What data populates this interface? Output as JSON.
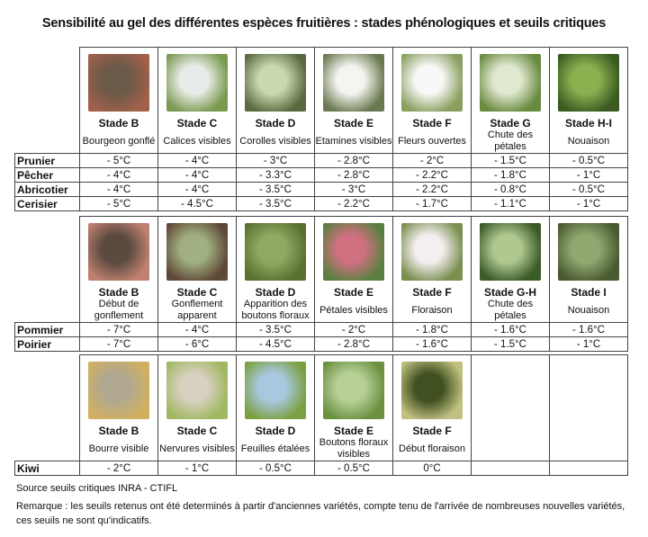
{
  "title": "Sensibilité au gel des différentes espèces fruitières : stades phénologiques et seuils critiques",
  "sections": [
    {
      "stages": [
        {
          "stage": "Stade B",
          "desc": "Bourgeon gonflé",
          "photo": "bud-photo",
          "colors": [
            "#6b5a48",
            "#a0604a"
          ]
        },
        {
          "stage": "Stade C",
          "desc": "Calices visibles",
          "photo": "calyx-photo",
          "colors": [
            "#e8ece8",
            "#7a9a50"
          ]
        },
        {
          "stage": "Stade D",
          "desc": "Corolles visibles",
          "photo": "corolla-photo",
          "colors": [
            "#c8d8b0",
            "#5a6a40"
          ]
        },
        {
          "stage": "Stade E",
          "desc": "Etamines visibles",
          "photo": "stamen-photo",
          "colors": [
            "#f4f4f0",
            "#6a7a50"
          ]
        },
        {
          "stage": "Stade F",
          "desc": "Fleurs ouvertes",
          "photo": "open-flower-photo",
          "colors": [
            "#f8f8f8",
            "#8aa060"
          ]
        },
        {
          "stage": "Stade G",
          "desc": "Chute des pétales",
          "photo": "petal-fall-photo",
          "colors": [
            "#e0e8d0",
            "#6a8a40"
          ]
        },
        {
          "stage": "Stade H-I",
          "desc": "Nouaison",
          "photo": "fruit-set-photo",
          "colors": [
            "#8ab050",
            "#3a5a20"
          ]
        }
      ],
      "rows": [
        {
          "name": "Prunier",
          "values": [
            "- 5°C",
            "- 4°C",
            "- 3°C",
            "- 2.8°C",
            "- 2°C",
            "- 1.5°C",
            "- 0.5°C"
          ]
        },
        {
          "name": "Pêcher",
          "values": [
            "- 4°C",
            "- 4°C",
            "- 3.3°C",
            "- 2.8°C",
            "- 2.2°C",
            "- 1.8°C",
            "- 1°C"
          ]
        },
        {
          "name": "Abricotier",
          "values": [
            "- 4°C",
            "- 4°C",
            "- 3.5°C",
            "- 3°C",
            "- 2.2°C",
            "- 0.8°C",
            "- 0.5°C"
          ]
        },
        {
          "name": "Cerisier",
          "values": [
            "- 5°C",
            "- 4.5°C",
            "- 3.5°C",
            "- 2.2°C",
            "- 1.7°C",
            "- 1.1°C",
            "- 1°C"
          ]
        }
      ]
    },
    {
      "stages": [
        {
          "stage": "Stade B",
          "desc": "Début de gonflement",
          "photo": "bud-photo",
          "colors": [
            "#5a4a40",
            "#c08070"
          ]
        },
        {
          "stage": "Stade C",
          "desc": "Gonflement apparent",
          "photo": "swelling-photo",
          "colors": [
            "#a0b080",
            "#604838"
          ]
        },
        {
          "stage": "Stade D",
          "desc": "Apparition des boutons floraux",
          "photo": "flower-buds-photo",
          "colors": [
            "#90a860",
            "#5a7030"
          ]
        },
        {
          "stage": "Stade E",
          "desc": "Pétales visibles",
          "photo": "petals-photo",
          "colors": [
            "#d07080",
            "#5a8040"
          ]
        },
        {
          "stage": "Stade F",
          "desc": "Floraison",
          "photo": "bloom-photo",
          "colors": [
            "#f4eef0",
            "#7a9050"
          ]
        },
        {
          "stage": "Stade G-H",
          "desc": "Chute des pétales",
          "photo": "petal-fall-photo",
          "colors": [
            "#b0c890",
            "#3a5a28"
          ]
        },
        {
          "stage": "Stade I",
          "desc": "Nouaison",
          "photo": "fruit-set-photo",
          "colors": [
            "#90a870",
            "#4a5a30"
          ]
        }
      ],
      "rows": [
        {
          "name": "Pommier",
          "values": [
            "- 7°C",
            "- 4°C",
            "- 3.5°C",
            "- 2°C",
            "- 1.8°C",
            "- 1.6°C",
            "- 1.6°C"
          ]
        },
        {
          "name": "Poirier",
          "values": [
            "- 7°C",
            "- 6°C",
            "- 4.5°C",
            "- 2.8°C",
            "- 1.6°C",
            "- 1.5°C",
            "- 1°C"
          ]
        }
      ]
    },
    {
      "stages": [
        {
          "stage": "Stade B",
          "desc": "Bourre visible",
          "photo": "bud-wool-photo",
          "colors": [
            "#b0a890",
            "#d0b060"
          ]
        },
        {
          "stage": "Stade C",
          "desc": "Nervures visibles",
          "photo": "veins-photo",
          "colors": [
            "#d8d0c0",
            "#a0b860"
          ]
        },
        {
          "stage": "Stade D",
          "desc": "Feuilles étalées",
          "photo": "leaves-photo",
          "colors": [
            "#a8c8e0",
            "#7aa040"
          ]
        },
        {
          "stage": "Stade E",
          "desc": "Boutons floraux visibles",
          "photo": "flower-buds-photo",
          "colors": [
            "#b8d098",
            "#6a9040"
          ]
        },
        {
          "stage": "Stade F",
          "desc": "Début floraison",
          "photo": "early-bloom-photo",
          "colors": [
            "#405020",
            "#c0c080"
          ]
        }
      ],
      "rows": [
        {
          "name": "Kiwi",
          "values": [
            "- 2°C",
            "- 1°C",
            "- 0.5°C",
            "- 0.5°C",
            "0°C",
            "",
            ""
          ]
        }
      ]
    }
  ],
  "source": "Source seuils critiques INRA - CTIFL",
  "remark": "Remarque : les seuils retenus ont été determinés à partir d'anciennes variétés, compte tenu de l'arrivée de nombreuses nouvelles variétés, ces seuils ne sont qu'indicatifs."
}
